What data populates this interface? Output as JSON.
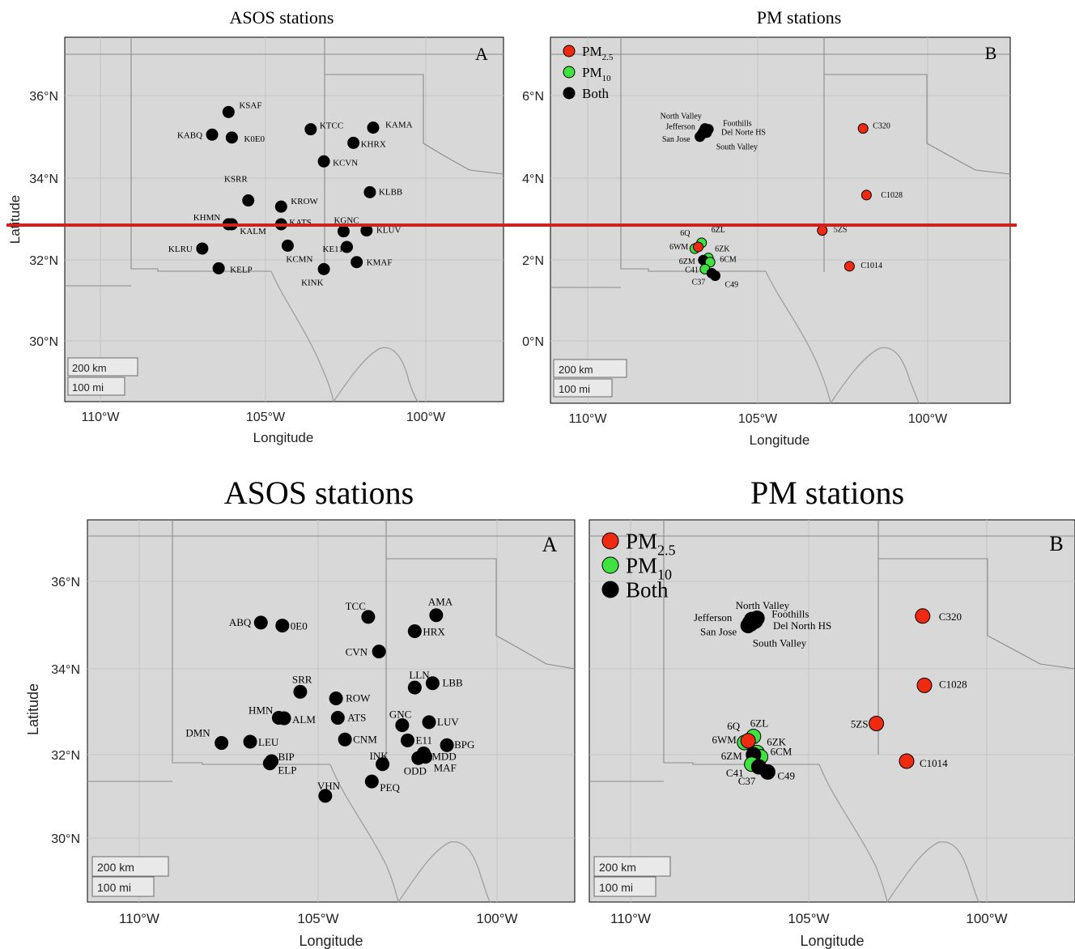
{
  "colors": {
    "pm25": "#ee2b12",
    "pm10": "#3fe23f",
    "both": "#000000",
    "divider": "#cc2222"
  },
  "top": {
    "asos": {
      "title": "ASOS stations",
      "panel_letter": "A",
      "xlabel": "Longitude",
      "ylabel": "Latitude",
      "x_ticks": [
        "110°W",
        "105°W",
        "100°W"
      ],
      "y_ticks": [
        "36°N",
        "34°N",
        "32°N",
        "30°N"
      ],
      "scale": {
        "km": "200 km",
        "mi": "100 mi"
      },
      "stations": [
        {
          "label": "KSAF",
          "lon": -106.1,
          "lat": 35.6
        },
        {
          "label": "KABQ",
          "lon": -106.6,
          "lat": 35.05
        },
        {
          "label": "K0E0",
          "lon": -106.0,
          "lat": 34.98
        },
        {
          "label": "KTCC",
          "lon": -103.6,
          "lat": 35.18
        },
        {
          "label": "KAMA",
          "lon": -101.7,
          "lat": 35.22
        },
        {
          "label": "KHRX",
          "lon": -102.3,
          "lat": 34.85
        },
        {
          "label": "KCVN",
          "lon": -103.2,
          "lat": 34.4
        },
        {
          "label": "KSRR",
          "lon": -105.5,
          "lat": 33.45
        },
        {
          "label": "KLBB",
          "lon": -101.8,
          "lat": 33.65
        },
        {
          "label": "KROW",
          "lon": -104.5,
          "lat": 33.3
        },
        {
          "label": "KHMN",
          "lon": -106.1,
          "lat": 32.87
        },
        {
          "label": "KALM",
          "lon": -106.0,
          "lat": 32.87
        },
        {
          "label": "KATS",
          "lon": -104.5,
          "lat": 32.87
        },
        {
          "label": "KGNC",
          "lon": -102.6,
          "lat": 32.7
        },
        {
          "label": "KLUV",
          "lon": -101.9,
          "lat": 32.72
        },
        {
          "label": "KE11",
          "lon": -102.5,
          "lat": 32.32
        },
        {
          "label": "KLRU",
          "lon": -106.9,
          "lat": 32.28
        },
        {
          "label": "KCMN",
          "lon": -104.3,
          "lat": 32.35
        },
        {
          "label": "KMAF",
          "lon": -102.2,
          "lat": 31.95
        },
        {
          "label": "KELP",
          "lon": -106.4,
          "lat": 31.8
        },
        {
          "label": "KINK",
          "lon": -103.2,
          "lat": 31.78
        }
      ]
    },
    "pm": {
      "title": "PM stations",
      "panel_letter": "B",
      "xlabel": "Longitude",
      "x_ticks": [
        "110°W",
        "105°W",
        "100°W"
      ],
      "y_ticks": [
        "6°N",
        "4°N",
        "2°N",
        "0°N"
      ],
      "scale": {
        "km": "200 km",
        "mi": "100 mi"
      },
      "legend": [
        {
          "base": "PM",
          "sub": "2.5",
          "type": "pm25"
        },
        {
          "base": "PM",
          "sub": "10",
          "type": "pm10"
        },
        {
          "base": "Both",
          "sub": "",
          "type": "both"
        }
      ],
      "stations": [
        {
          "label": "North Valley",
          "lon": -106.6,
          "lat": 5.12,
          "type": "both"
        },
        {
          "label": "Jefferson",
          "lon": -106.55,
          "lat": 5.2,
          "type": "both"
        },
        {
          "label": "San Jose",
          "lon": -106.7,
          "lat": 5.0,
          "type": "both"
        },
        {
          "label": "Foothills",
          "lon": -106.45,
          "lat": 5.18,
          "type": "both"
        },
        {
          "label": "Del Norte HS",
          "lon": -106.5,
          "lat": 5.1,
          "type": "both"
        },
        {
          "label": "South Valley",
          "lon": -106.65,
          "lat": 5.05,
          "type": "both"
        },
        {
          "label": "C320",
          "lon": -101.9,
          "lat": 5.2,
          "type": "pm25"
        },
        {
          "label": "C1028",
          "lon": -101.8,
          "lat": 3.58,
          "type": "pm25"
        },
        {
          "label": "5ZS",
          "lon": -103.1,
          "lat": 2.72,
          "type": "pm25"
        },
        {
          "label": "C1014",
          "lon": -102.3,
          "lat": 1.85,
          "type": "pm25"
        },
        {
          "label": "6ZL",
          "lon": -106.65,
          "lat": 2.42,
          "type": "pm10"
        },
        {
          "label": "6WM",
          "lon": -106.85,
          "lat": 2.28,
          "type": "pm10"
        },
        {
          "label": "6Q",
          "lon": -106.75,
          "lat": 2.32,
          "type": "pm25"
        },
        {
          "label": "6ZK",
          "lon": -106.45,
          "lat": 2.05,
          "type": "pm10"
        },
        {
          "label": "6ZM",
          "lon": -106.6,
          "lat": 2.0,
          "type": "both"
        },
        {
          "label": "6CM",
          "lon": -106.4,
          "lat": 1.95,
          "type": "pm10"
        },
        {
          "label": "C41",
          "lon": -106.55,
          "lat": 1.78,
          "type": "pm10"
        },
        {
          "label": "C37",
          "lon": -106.35,
          "lat": 1.68,
          "type": "both"
        },
        {
          "label": "C49",
          "lon": -106.25,
          "lat": 1.62,
          "type": "both"
        }
      ]
    }
  },
  "bottom": {
    "asos": {
      "title": "ASOS stations",
      "panel_letter": "A",
      "xlabel": "Longitude",
      "ylabel": "Latitude",
      "x_ticks": [
        "110°W",
        "105°W",
        "100°W"
      ],
      "y_ticks": [
        "36°N",
        "34°N",
        "32°N",
        "30°N"
      ],
      "scale": {
        "km": "200 km",
        "mi": "100 mi"
      },
      "stations": [
        {
          "label": "ABQ",
          "lon": -106.6,
          "lat": 35.05
        },
        {
          "label": "0E0",
          "lon": -106.0,
          "lat": 34.98
        },
        {
          "label": "TCC",
          "lon": -103.6,
          "lat": 35.18
        },
        {
          "label": "AMA",
          "lon": -101.7,
          "lat": 35.22
        },
        {
          "label": "HRX",
          "lon": -102.3,
          "lat": 34.85
        },
        {
          "label": "CVN",
          "lon": -103.3,
          "lat": 34.38
        },
        {
          "label": "SRR",
          "lon": -105.5,
          "lat": 33.45
        },
        {
          "label": "LLN",
          "lon": -102.3,
          "lat": 33.55
        },
        {
          "label": "LBB",
          "lon": -101.8,
          "lat": 33.65
        },
        {
          "label": "ROW",
          "lon": -104.5,
          "lat": 33.3
        },
        {
          "label": "HMN",
          "lon": -106.1,
          "lat": 32.85
        },
        {
          "label": "ALM",
          "lon": -105.95,
          "lat": 32.84
        },
        {
          "label": "ATS",
          "lon": -104.45,
          "lat": 32.85
        },
        {
          "label": "GNC",
          "lon": -102.65,
          "lat": 32.68
        },
        {
          "label": "LUV",
          "lon": -101.9,
          "lat": 32.75
        },
        {
          "label": "DMN",
          "lon": -107.7,
          "lat": 32.27
        },
        {
          "label": "LEU",
          "lon": -106.9,
          "lat": 32.3
        },
        {
          "label": "CNM",
          "lon": -104.25,
          "lat": 32.35
        },
        {
          "label": "E11",
          "lon": -102.5,
          "lat": 32.33
        },
        {
          "label": "BPG",
          "lon": -101.4,
          "lat": 32.22
        },
        {
          "label": "INK",
          "lon": -103.2,
          "lat": 31.78
        },
        {
          "label": "MDD",
          "lon": -102.05,
          "lat": 32.03
        },
        {
          "label": "ODD",
          "lon": -102.2,
          "lat": 31.92
        },
        {
          "label": "MAF",
          "lon": -102.0,
          "lat": 31.95
        },
        {
          "label": "BIP",
          "lon": -106.3,
          "lat": 31.85
        },
        {
          "label": "ELP",
          "lon": -106.35,
          "lat": 31.8
        },
        {
          "label": "VHN",
          "lon": -104.8,
          "lat": 31.05
        },
        {
          "label": "PEQ",
          "lon": -103.5,
          "lat": 31.38
        }
      ]
    },
    "pm": {
      "title": "PM stations",
      "panel_letter": "B",
      "xlabel": "Longitude",
      "x_ticks": [
        "110°W",
        "105°W",
        "100°W"
      ],
      "scale": {
        "km": "200 km",
        "mi": "100 mi"
      },
      "legend": [
        {
          "base": "PM",
          "sub": "2.5",
          "type": "pm25"
        },
        {
          "base": "PM",
          "sub": "10",
          "type": "pm10"
        },
        {
          "base": "Both",
          "sub": "",
          "type": "both"
        }
      ],
      "stations": [
        {
          "label": "North Valley",
          "lon": -106.6,
          "lat": 35.12,
          "type": "both"
        },
        {
          "label": "Jefferson",
          "lon": -106.65,
          "lat": 35.05,
          "type": "both"
        },
        {
          "label": "San Jose",
          "lon": -106.7,
          "lat": 34.98,
          "type": "both"
        },
        {
          "label": "Foothills",
          "lon": -106.45,
          "lat": 35.15,
          "type": "both"
        },
        {
          "label": "Del North HS",
          "lon": -106.5,
          "lat": 35.08,
          "type": "both"
        },
        {
          "label": "South Valley",
          "lon": -106.62,
          "lat": 35.02,
          "type": "both"
        },
        {
          "label": "C320",
          "lon": -101.8,
          "lat": 35.2,
          "type": "pm25"
        },
        {
          "label": "C1028",
          "lon": -101.75,
          "lat": 33.6,
          "type": "pm25"
        },
        {
          "label": "5ZS",
          "lon": -103.1,
          "lat": 32.72,
          "type": "pm25"
        },
        {
          "label": "C1014",
          "lon": -102.25,
          "lat": 31.85,
          "type": "pm25"
        },
        {
          "label": "6ZL",
          "lon": -106.55,
          "lat": 32.42,
          "type": "pm10"
        },
        {
          "label": "6WM",
          "lon": -106.8,
          "lat": 32.28,
          "type": "pm10"
        },
        {
          "label": "6Q",
          "lon": -106.7,
          "lat": 32.32,
          "type": "pm25"
        },
        {
          "label": "6ZK",
          "lon": -106.45,
          "lat": 32.05,
          "type": "pm10"
        },
        {
          "label": "6CM",
          "lon": -106.35,
          "lat": 31.95,
          "type": "pm10"
        },
        {
          "label": "6ZM",
          "lon": -106.55,
          "lat": 32.0,
          "type": "both"
        },
        {
          "label": "C41",
          "lon": -106.6,
          "lat": 31.78,
          "type": "pm10"
        },
        {
          "label": "C37",
          "lon": -106.4,
          "lat": 31.72,
          "type": "both"
        },
        {
          "label": "C49",
          "lon": -106.15,
          "lat": 31.6,
          "type": "both"
        }
      ]
    }
  }
}
